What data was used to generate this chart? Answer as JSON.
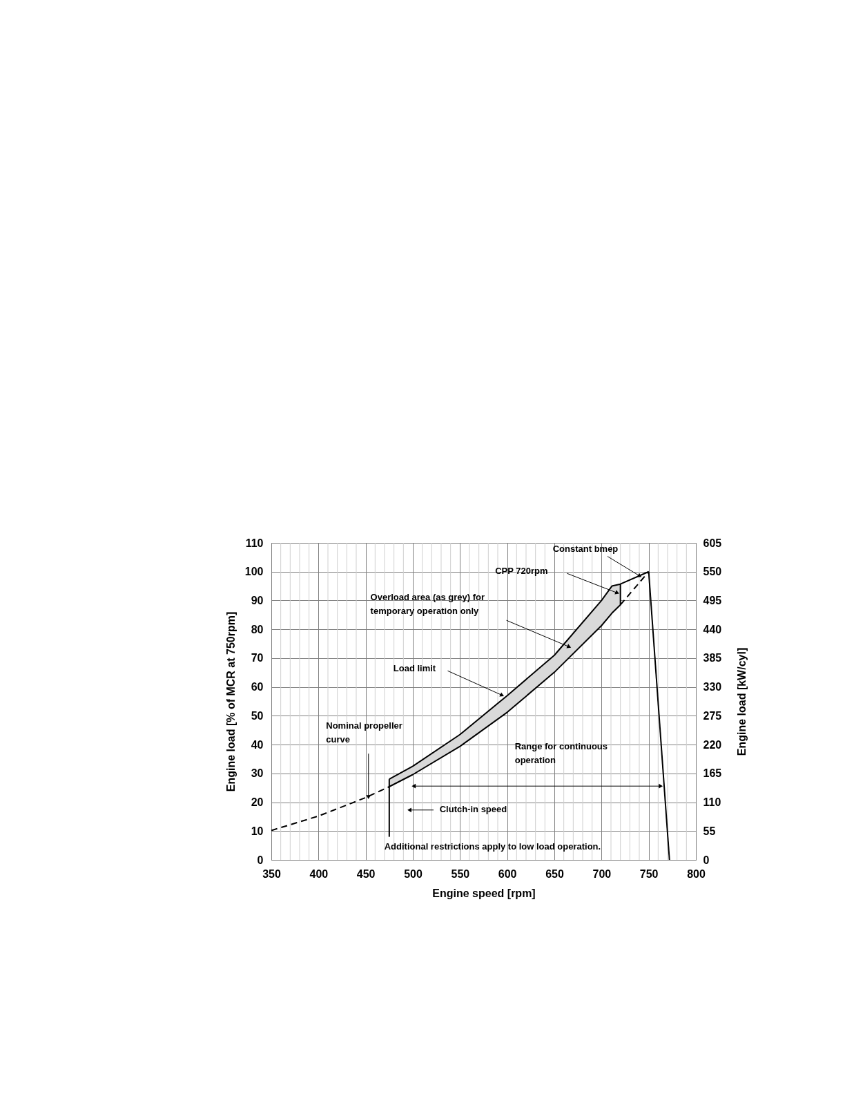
{
  "chart_data": {
    "type": "line",
    "xlabel": "Engine speed [rpm]",
    "ylabel": "Engine load [% of MCR at 750rpm]",
    "y2label": "Engine load [kW/cyl]",
    "xlim": [
      350,
      800
    ],
    "xticks": [
      350,
      {
        "value": 360,
        "label": null
      },
      {
        "value": 370,
        "label": null
      },
      {
        "value": 380,
        "label": null
      },
      {
        "value": 390,
        "label": null
      },
      400,
      {
        "value": 410,
        "label": null
      },
      {
        "value": 420,
        "label": null
      },
      {
        "value": 430,
        "label": null
      },
      {
        "value": 440,
        "label": null
      },
      450,
      {
        "value": 460,
        "label": null
      },
      {
        "value": 470,
        "label": null
      },
      {
        "value": 480,
        "label": null
      },
      {
        "value": 490,
        "label": null
      },
      500,
      {
        "value": 510,
        "label": null
      },
      {
        "value": 520,
        "label": null
      },
      {
        "value": 530,
        "label": null
      },
      {
        "value": 540,
        "label": null
      },
      550,
      {
        "value": 560,
        "label": null
      },
      {
        "value": 570,
        "label": null
      },
      {
        "value": 580,
        "label": null
      },
      {
        "value": 590,
        "label": null
      },
      600,
      {
        "value": 610,
        "label": null
      },
      {
        "value": 620,
        "label": null
      },
      {
        "value": 630,
        "label": null
      },
      {
        "value": 640,
        "label": null
      },
      650,
      {
        "value": 660,
        "label": null
      },
      {
        "value": 670,
        "label": null
      },
      {
        "value": 680,
        "label": null
      },
      {
        "value": 690,
        "label": null
      },
      700,
      {
        "value": 710,
        "label": null
      },
      {
        "value": 720,
        "label": null
      },
      {
        "value": 730,
        "label": null
      },
      {
        "value": 740,
        "label": null
      },
      750,
      {
        "value": 760,
        "label": null
      },
      {
        "value": 770,
        "label": null
      },
      {
        "value": 780,
        "label": null
      },
      {
        "value": 790,
        "label": null
      },
      800
    ],
    "ylim": [
      0,
      110
    ],
    "yticks": [
      0,
      10,
      20,
      30,
      40,
      50,
      60,
      70,
      80,
      90,
      100,
      110
    ],
    "y2lim": [
      0,
      605
    ],
    "y2ticks": [
      0,
      55,
      110,
      165,
      220,
      275,
      330,
      385,
      440,
      495,
      550,
      605
    ],
    "grid": true,
    "series": [
      {
        "color": "#000000",
        "x": [
          475,
          500,
          550,
          600,
          650,
          700,
          711,
          720,
          750
        ],
        "values": [
          28,
          32.5,
          43.5,
          57,
          71,
          90,
          95,
          95.7,
          100
        ],
        "lower": [
          25.4,
          29.6,
          39.4,
          51.2,
          65.1,
          81.3,
          85.6,
          88.5,
          null
        ],
        "upper": [
          28,
          32.5,
          43.5,
          57,
          71,
          90,
          95,
          95.7,
          null
        ]
      },
      {
        "color": "#000000",
        "line_style": "dashed",
        "x": [
          350,
          400,
          450,
          475
        ],
        "values": [
          10.2,
          15.2,
          21.6,
          25.4
        ]
      },
      {
        "color": "#000000",
        "line_style": "dashed",
        "x": [
          720,
          750
        ],
        "values": [
          88.5,
          100
        ]
      },
      {
        "color": "#000000",
        "x": [
          475,
          500,
          550,
          600,
          650,
          700,
          711,
          720,
          720
        ],
        "values": [
          25.4,
          29.6,
          39.4,
          51.2,
          65.1,
          81.3,
          85.6,
          88.5,
          95.7
        ]
      },
      {
        "color": "#000000",
        "x": [
          475,
          475
        ],
        "values": [
          28,
          8
        ]
      },
      {
        "color": "#000000",
        "x": [
          750,
          772
        ],
        "values": [
          100,
          0
        ]
      }
    ],
    "annotations": [
      {
        "text": "Constant bmep",
        "x": 740,
        "y": 98.6
      },
      "CPP 720rpm",
      "Overload area (as grey) for temporary operation only",
      "Load limit",
      {
        "text": "Nominal propeller curve",
        "x": 453,
        "y": 22
      },
      "Clutch-in speed",
      "Range for continuous operation",
      "Additional restrictions apply to low load operation."
    ]
  }
}
